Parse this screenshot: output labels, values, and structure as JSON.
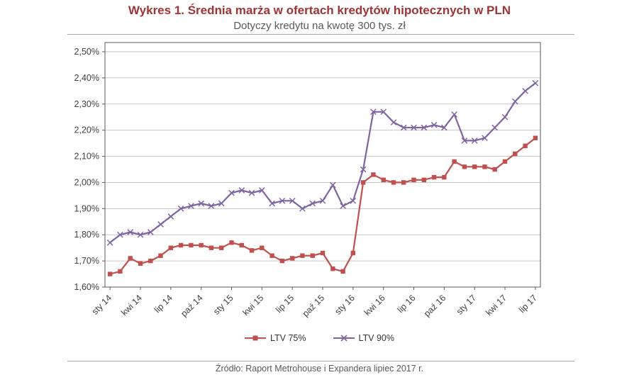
{
  "chart_data": {
    "type": "line",
    "title": "Wykres 1. Średnia marża w ofertach kredytów hipotecznych w PLN",
    "subtitle": "Dotyczy kredytu na kwotę 300 tys. zł",
    "source": "Źródło: Raport Metrohouse i Expandera lipiec 2017 r.",
    "legend_position": "bottom",
    "grid": "horizontal",
    "ylim": [
      1.6,
      2.5
    ],
    "y_ticks": [
      1.6,
      1.7,
      1.8,
      1.9,
      2.0,
      2.1,
      2.2,
      2.3,
      2.4,
      2.5
    ],
    "y_tick_labels": [
      "1,60%",
      "1,70%",
      "1,80%",
      "1,90%",
      "2,00%",
      "2,10%",
      "2,20%",
      "2,30%",
      "2,40%",
      "2,50%"
    ],
    "x_tick_every": 3,
    "x_tick_labels": [
      "sty 14",
      "kwi 14",
      "lip 14",
      "paź 14",
      "sty 15",
      "kwi 15",
      "lip 15",
      "paź 15",
      "sty 16",
      "kwi 16",
      "lip 16",
      "paź 16",
      "sty 17",
      "kwi 17",
      "lip 17"
    ],
    "months": [
      "sty 14",
      "lut 14",
      "mar 14",
      "kwi 14",
      "maj 14",
      "cze 14",
      "lip 14",
      "sie 14",
      "wrz 14",
      "paź 14",
      "lis 14",
      "gru 14",
      "sty 15",
      "lut 15",
      "mar 15",
      "kwi 15",
      "maj 15",
      "cze 15",
      "lip 15",
      "sie 15",
      "wrz 15",
      "paź 15",
      "lis 15",
      "gru 15",
      "sty 16",
      "lut 16",
      "mar 16",
      "kwi 16",
      "maj 16",
      "cze 16",
      "lip 16",
      "sie 16",
      "wrz 16",
      "paź 16",
      "lis 16",
      "gru 16",
      "sty 17",
      "lut 17",
      "mar 17",
      "kwi 17",
      "maj 17",
      "cze 17",
      "lip 17"
    ],
    "series": [
      {
        "name": "LTV 75%",
        "color": "#C0504D",
        "marker": "square",
        "values": [
          1.65,
          1.66,
          1.71,
          1.69,
          1.7,
          1.72,
          1.75,
          1.76,
          1.76,
          1.76,
          1.75,
          1.75,
          1.77,
          1.76,
          1.74,
          1.75,
          1.72,
          1.7,
          1.71,
          1.72,
          1.72,
          1.73,
          1.67,
          1.66,
          1.73,
          2.0,
          2.03,
          2.01,
          2.0,
          2.0,
          2.01,
          2.01,
          2.02,
          2.02,
          2.08,
          2.06,
          2.06,
          2.06,
          2.05,
          2.08,
          2.11,
          2.14,
          2.17
        ]
      },
      {
        "name": "LTV 90%",
        "color": "#8064A2",
        "marker": "x",
        "values": [
          1.77,
          1.8,
          1.81,
          1.8,
          1.81,
          1.84,
          1.87,
          1.9,
          1.91,
          1.92,
          1.91,
          1.92,
          1.96,
          1.97,
          1.96,
          1.97,
          1.92,
          1.93,
          1.93,
          1.9,
          1.92,
          1.93,
          1.99,
          1.91,
          1.93,
          2.05,
          2.27,
          2.27,
          2.23,
          2.21,
          2.21,
          2.21,
          2.22,
          2.21,
          2.26,
          2.16,
          2.16,
          2.17,
          2.21,
          2.25,
          2.31,
          2.35,
          2.38
        ]
      }
    ],
    "colors": {
      "title": "#9E3434",
      "subtitle": "#595959",
      "source": "#595959",
      "grid": "#C6C6C6",
      "axis": "#595959"
    }
  }
}
